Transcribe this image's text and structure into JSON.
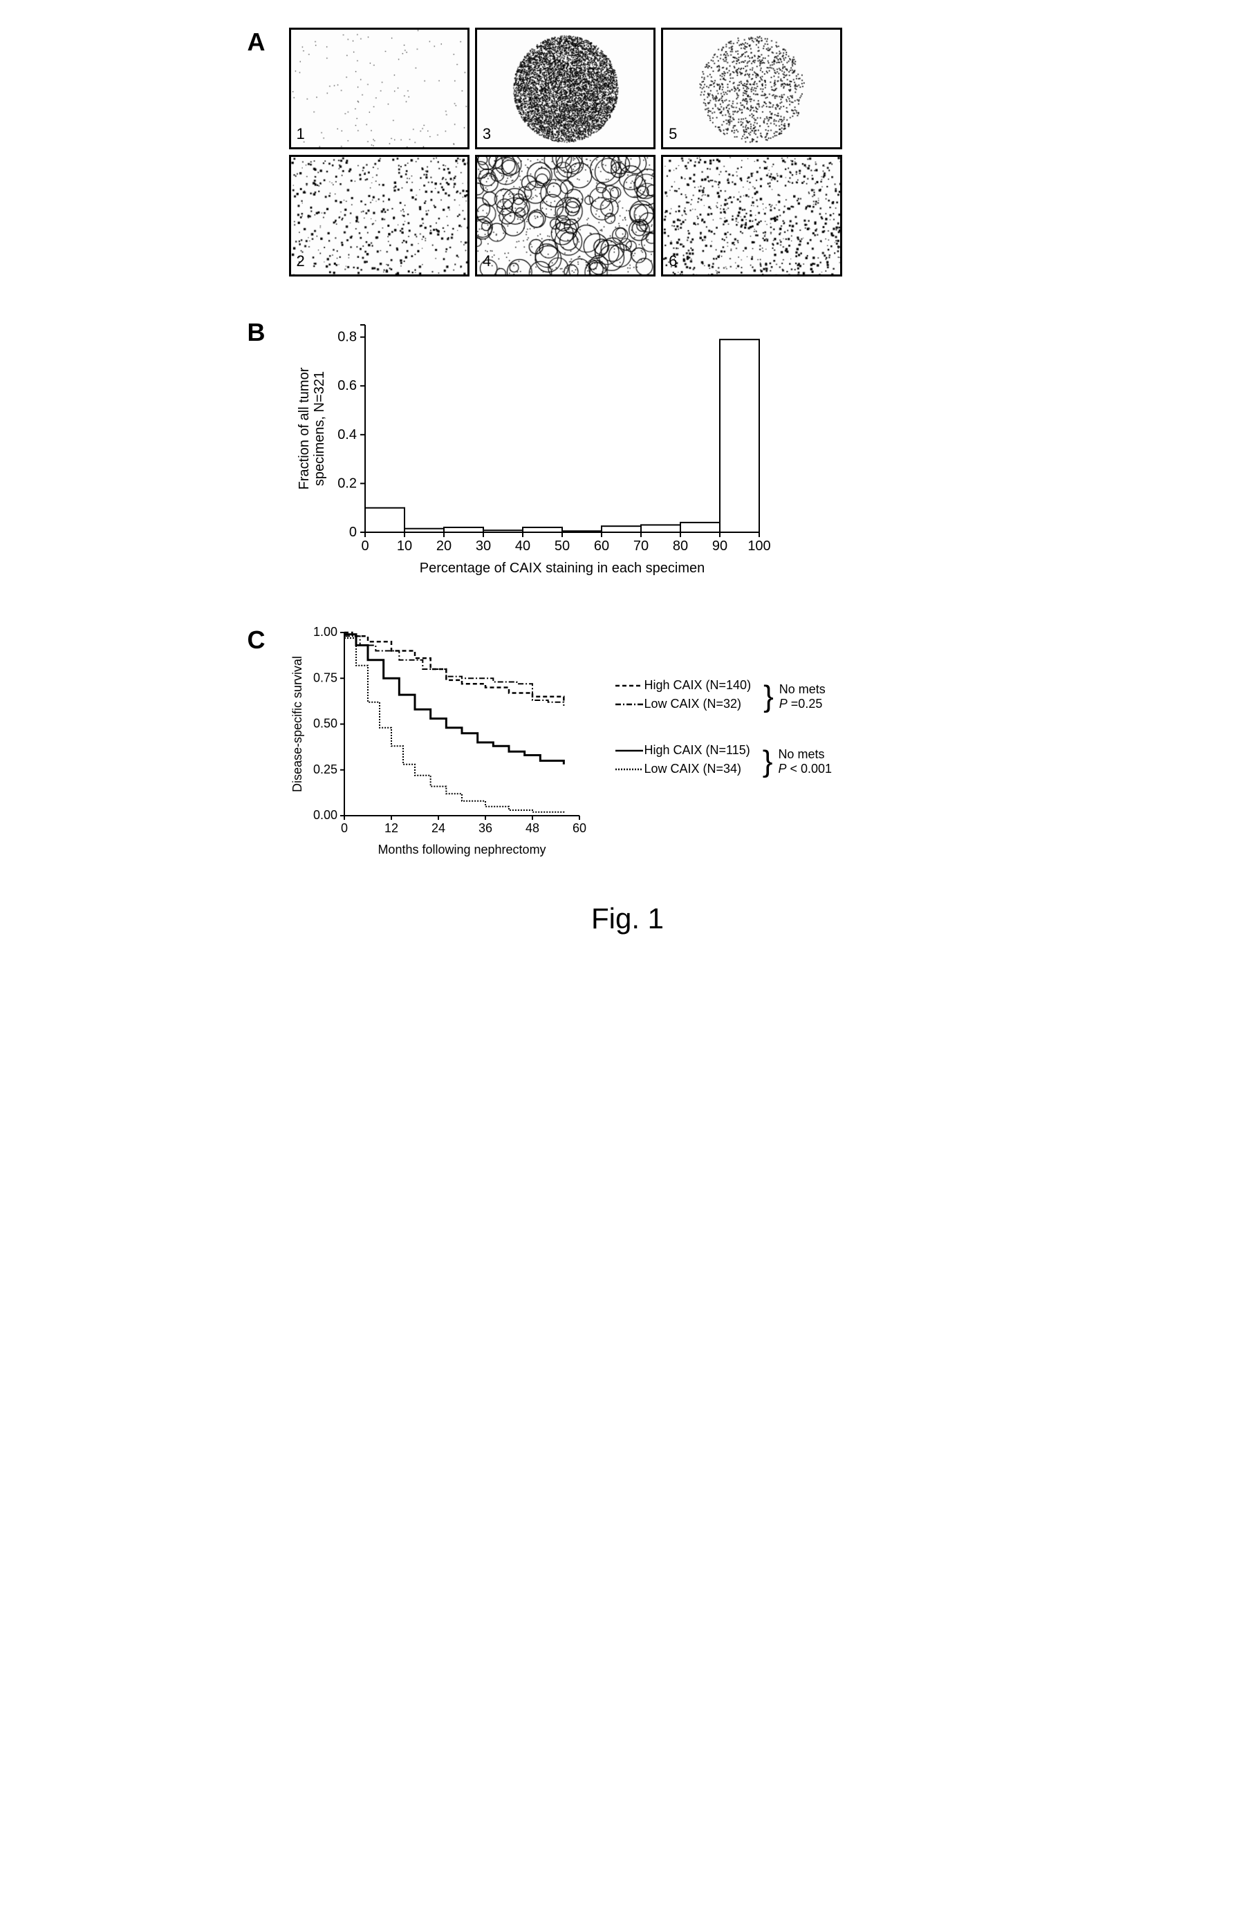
{
  "figure_label": "Fig. 1",
  "panel_a": {
    "label": "A",
    "micrographs": [
      {
        "num": "1",
        "density": 0.02,
        "pattern": "sparse"
      },
      {
        "num": "2",
        "density": 0.08,
        "pattern": "scattered"
      },
      {
        "num": "3",
        "density": 0.85,
        "pattern": "dense-circle"
      },
      {
        "num": "4",
        "density": 0.45,
        "pattern": "cellular"
      },
      {
        "num": "5",
        "density": 0.2,
        "pattern": "patchy-circle"
      },
      {
        "num": "6",
        "density": 0.15,
        "pattern": "scattered"
      }
    ]
  },
  "panel_b": {
    "label": "B",
    "type": "bar",
    "ylabel": "Fraction of all tumor\nspecimens, N=321",
    "xlabel": "Percentage of CAIX staining in each specimen",
    "x_ticks": [
      0,
      10,
      20,
      30,
      40,
      50,
      60,
      70,
      80,
      90,
      100
    ],
    "y_ticks": [
      0,
      0.2,
      0.4,
      0.6,
      0.8
    ],
    "ylim": [
      0,
      0.85
    ],
    "bars": [
      {
        "x_start": 0,
        "x_end": 10,
        "value": 0.1
      },
      {
        "x_start": 10,
        "x_end": 20,
        "value": 0.015
      },
      {
        "x_start": 20,
        "x_end": 30,
        "value": 0.02
      },
      {
        "x_start": 30,
        "x_end": 40,
        "value": 0.008
      },
      {
        "x_start": 40,
        "x_end": 50,
        "value": 0.02
      },
      {
        "x_start": 50,
        "x_end": 60,
        "value": 0.005
      },
      {
        "x_start": 60,
        "x_end": 70,
        "value": 0.025
      },
      {
        "x_start": 70,
        "x_end": 80,
        "value": 0.03
      },
      {
        "x_start": 80,
        "x_end": 90,
        "value": 0.04
      },
      {
        "x_start": 90,
        "x_end": 100,
        "value": 0.79
      }
    ],
    "bar_fill": "#ffffff",
    "bar_stroke": "#000000",
    "label_fontsize": 20
  },
  "panel_c": {
    "label": "C",
    "type": "survival",
    "ylabel": "Disease-specific survival",
    "xlabel": "Months following nephrectomy",
    "x_ticks": [
      0,
      12,
      24,
      36,
      48,
      60
    ],
    "y_ticks": [
      0.0,
      0.25,
      0.5,
      0.75,
      1.0
    ],
    "xlim": [
      0,
      60
    ],
    "ylim": [
      0,
      1.0
    ],
    "label_fontsize": 18,
    "curves": [
      {
        "name": "high-caix-nomets",
        "dash": "6,4",
        "width": 2.5,
        "points": [
          [
            0,
            1.0
          ],
          [
            2,
            0.98
          ],
          [
            6,
            0.95
          ],
          [
            12,
            0.9
          ],
          [
            18,
            0.86
          ],
          [
            22,
            0.8
          ],
          [
            26,
            0.74
          ],
          [
            30,
            0.72
          ],
          [
            36,
            0.7
          ],
          [
            42,
            0.67
          ],
          [
            48,
            0.65
          ],
          [
            56,
            0.62
          ]
        ]
      },
      {
        "name": "low-caix-nomets",
        "dash": "8,3,2,3",
        "width": 2,
        "points": [
          [
            0,
            0.98
          ],
          [
            4,
            0.93
          ],
          [
            8,
            0.9
          ],
          [
            14,
            0.85
          ],
          [
            20,
            0.8
          ],
          [
            26,
            0.76
          ],
          [
            30,
            0.75
          ],
          [
            38,
            0.73
          ],
          [
            44,
            0.72
          ],
          [
            48,
            0.63
          ],
          [
            52,
            0.62
          ],
          [
            56,
            0.6
          ]
        ]
      },
      {
        "name": "high-caix-mets",
        "dash": "none",
        "width": 3,
        "points": [
          [
            0,
            0.99
          ],
          [
            3,
            0.93
          ],
          [
            6,
            0.85
          ],
          [
            10,
            0.75
          ],
          [
            14,
            0.66
          ],
          [
            18,
            0.58
          ],
          [
            22,
            0.53
          ],
          [
            26,
            0.48
          ],
          [
            30,
            0.45
          ],
          [
            34,
            0.4
          ],
          [
            38,
            0.38
          ],
          [
            42,
            0.35
          ],
          [
            46,
            0.33
          ],
          [
            50,
            0.3
          ],
          [
            56,
            0.28
          ]
        ]
      },
      {
        "name": "low-caix-mets",
        "dash": "2,2",
        "width": 2,
        "points": [
          [
            0,
            0.97
          ],
          [
            3,
            0.82
          ],
          [
            6,
            0.62
          ],
          [
            9,
            0.48
          ],
          [
            12,
            0.38
          ],
          [
            15,
            0.28
          ],
          [
            18,
            0.22
          ],
          [
            22,
            0.16
          ],
          [
            26,
            0.12
          ],
          [
            30,
            0.08
          ],
          [
            36,
            0.05
          ],
          [
            42,
            0.03
          ],
          [
            48,
            0.02
          ],
          [
            56,
            0.01
          ]
        ]
      }
    ],
    "legend_groups": [
      {
        "lines": [
          {
            "dash": "6,4",
            "label": "High CAIX (N=140)"
          },
          {
            "dash": "8,3,2,3",
            "label": "Low CAIX (N=32)"
          }
        ],
        "note_title": "No mets",
        "note_p": "P =0.25"
      },
      {
        "lines": [
          {
            "dash": "none",
            "label": "High CAIX (N=115)"
          },
          {
            "dash": "2,2",
            "label": "Low CAIX (N=34)"
          }
        ],
        "note_title": "No mets",
        "note_p": "P < 0.001"
      }
    ]
  }
}
